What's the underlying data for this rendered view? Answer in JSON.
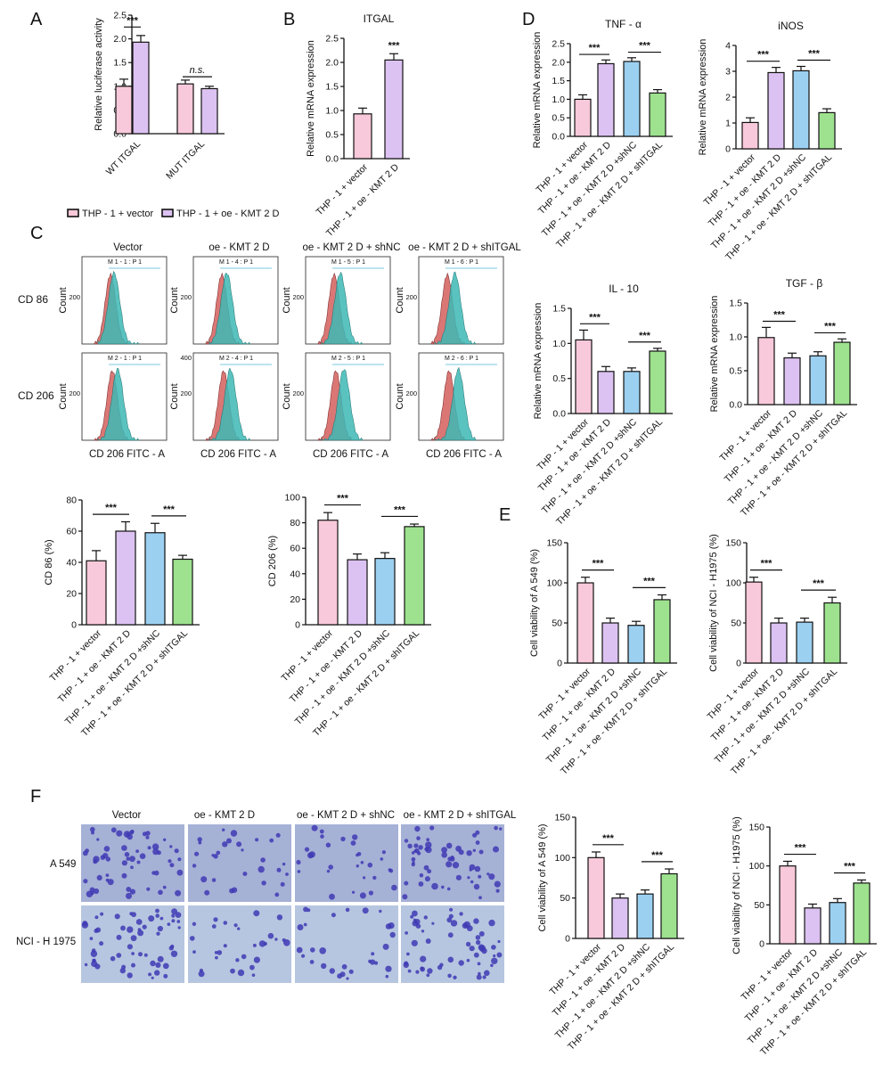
{
  "colors": {
    "pink": "#f8c9da",
    "purple": "#dcc2f2",
    "blue": "#9cd0f0",
    "green": "#9ee28f",
    "red_hist": "#d9706e",
    "cyan_hist": "#3db8b5",
    "micro_bg": "#a9b6d8",
    "micro_cell": "#3f3ab4"
  },
  "labels4": [
    "THP - 1 + vector",
    "THP - 1 + oe - KMT 2 D",
    "THP - 1 + oe - KMT 2 D +shNC",
    "THP - 1 + oe - KMT 2 D + shITGAL"
  ],
  "panels": {
    "A": "A",
    "B": "B",
    "C": "C",
    "D": "D",
    "E": "E",
    "F": "F"
  },
  "panelC_flow": {
    "columns": [
      "Vector",
      "oe - KMT 2 D",
      "oe - KMT 2 D + shNC",
      "oe - KMT 2 D + shITGAL"
    ],
    "rows": [
      "CD 86",
      "CD 206"
    ],
    "gates": [
      "M 1 - 1 : P 1",
      "M 1 - 4 : P 1",
      "M 1 - 5 : P 1",
      "M 1 - 6 : P 1",
      "M 2 - 1 : P 1",
      "M 2 - 4 : P 1",
      "M 2 - 5 : P 1",
      "M 2 - 6 : P 1"
    ],
    "ylabel": "Count",
    "xlabel": "CD 206 FITC - A",
    "top_ticks": [
      "200",
      "200",
      "200",
      "200"
    ],
    "bottom_ticks": [
      [
        "200"
      ],
      [
        "400",
        "200"
      ],
      [
        "200"
      ],
      [
        "200"
      ]
    ]
  },
  "panelF_images": {
    "columns": [
      "Vector",
      "oe - KMT 2 D",
      "oe - KMT 2 D + shNC",
      "oe - KMT 2 D + shITGAL"
    ],
    "rows": [
      "A 549",
      "NCI - H 1975"
    ]
  },
  "chart_data": [
    {
      "id": "A",
      "type": "bar",
      "ylabel": "Relative luciferase activity",
      "ylim": [
        0,
        2.5
      ],
      "yticks": [
        "0.0",
        "0.5",
        "1.0",
        "1.5",
        "2.0",
        "2.5"
      ],
      "categories": [
        "WT ITGAL",
        "MUT ITGAL"
      ],
      "series": [
        {
          "name": "THP - 1 + vector",
          "values": [
            1.0,
            1.05
          ],
          "errors": [
            0.15,
            0.08
          ]
        },
        {
          "name": "THP - 1 + oe - KMT 2 D",
          "values": [
            1.93,
            0.95
          ],
          "errors": [
            0.14,
            0.05
          ]
        }
      ],
      "significance": [
        "***",
        "n.s."
      ],
      "legend": [
        "THP - 1 + vector",
        "THP - 1 + oe - KMT 2 D"
      ]
    },
    {
      "id": "B",
      "type": "bar",
      "title": "ITGAL",
      "ylabel": "Relative mRNA expression",
      "ylim": [
        0,
        2.5
      ],
      "yticks": [
        "0.0",
        "0.5",
        "1.0",
        "1.5",
        "2.0",
        "2.5"
      ],
      "categories": [
        "THP - 1 + vector",
        "THP - 1 + oe - KMT 2 D"
      ],
      "values": [
        0.93,
        2.05
      ],
      "errors": [
        0.12,
        0.13
      ],
      "significance": [
        "***"
      ]
    },
    {
      "id": "D1",
      "type": "bar",
      "title": "TNF - α",
      "ylabel": "Relative mRNA expression",
      "ylim": [
        0,
        2.5
      ],
      "yticks": [
        "0.0",
        "0.5",
        "1.0",
        "1.5",
        "2.0",
        "2.5"
      ],
      "categories": [
        "THP - 1 + vector",
        "THP - 1 + oe - KMT 2 D",
        "THP - 1 + oe - KMT 2 D +shNC",
        "THP - 1 + oe - KMT 2 D + shITGAL"
      ],
      "values": [
        1.0,
        1.96,
        2.02,
        1.17
      ],
      "errors": [
        0.12,
        0.1,
        0.1,
        0.09
      ],
      "significance": [
        "***",
        "***"
      ]
    },
    {
      "id": "D2",
      "type": "bar",
      "title": "iNOS",
      "ylabel": "Relative mRNA expression",
      "ylim": [
        0,
        4
      ],
      "yticks": [
        "0",
        "1",
        "2",
        "3",
        "4"
      ],
      "categories": [
        "THP - 1 + vector",
        "THP - 1 + oe - KMT 2 D",
        "THP - 1 + oe - KMT 2 D +shNC",
        "THP - 1 + oe - KMT 2 D + shITGAL"
      ],
      "values": [
        1.02,
        2.95,
        3.02,
        1.4
      ],
      "errors": [
        0.18,
        0.2,
        0.17,
        0.15
      ],
      "significance": [
        "***",
        "***"
      ]
    },
    {
      "id": "D3",
      "type": "bar",
      "title": "IL - 10",
      "ylabel": "Relative mRNA expression",
      "ylim": [
        0,
        1.5
      ],
      "yticks": [
        "0.0",
        "0.5",
        "1.0",
        "1.5"
      ],
      "categories": [
        "THP - 1 + vector",
        "THP - 1 + oe - KMT 2 D",
        "THP - 1 + oe - KMT 2 D +shNC",
        "THP - 1 + oe - KMT 2 D + shITGAL"
      ],
      "values": [
        1.05,
        0.6,
        0.6,
        0.89
      ],
      "errors": [
        0.14,
        0.07,
        0.05,
        0.04
      ],
      "significance": [
        "***",
        "***"
      ]
    },
    {
      "id": "D4",
      "type": "bar",
      "title": "TGF - β",
      "ylabel": "Relative mRNA expression",
      "ylim": [
        0,
        1.5
      ],
      "yticks": [
        "0.0",
        "0.5",
        "1.0",
        "1.5"
      ],
      "categories": [
        "THP - 1 + vector",
        "THP - 1 + oe - KMT 2 D",
        "THP - 1 + oe - KMT 2 D +shNC",
        "THP - 1 + oe - KMT 2 D + shITGAL"
      ],
      "values": [
        0.99,
        0.69,
        0.72,
        0.92
      ],
      "errors": [
        0.15,
        0.07,
        0.06,
        0.05
      ],
      "significance": [
        "***",
        "***"
      ]
    },
    {
      "id": "C1",
      "type": "bar",
      "ylabel": "CD 86 (%)",
      "ylim": [
        0,
        80
      ],
      "yticks": [
        "0",
        "20",
        "40",
        "60",
        "80"
      ],
      "categories": [
        "THP - 1 + vector",
        "THP - 1 + oe - KMT 2 D",
        "THP - 1 + oe - KMT 2 D +shNC",
        "THP - 1 + oe - KMT 2 D + shITGAL"
      ],
      "values": [
        41,
        60,
        59,
        42
      ],
      "errors": [
        6.5,
        6,
        6,
        2.5
      ],
      "significance": [
        "***",
        "***"
      ]
    },
    {
      "id": "C2",
      "type": "bar",
      "ylabel": "CD 206 (%)",
      "ylim": [
        0,
        100
      ],
      "yticks": [
        "0",
        "20",
        "40",
        "60",
        "80",
        "100"
      ],
      "categories": [
        "THP - 1 + vector",
        "THP - 1 + oe - KMT 2 D",
        "THP - 1 + oe - KMT 2 D +shNC",
        "THP - 1 + oe - KMT 2 D + shITGAL"
      ],
      "values": [
        82,
        51,
        52,
        77
      ],
      "errors": [
        6,
        4.5,
        4.5,
        2
      ],
      "significance": [
        "***",
        "***"
      ]
    },
    {
      "id": "E1",
      "type": "bar",
      "ylabel": "Cell viability of A 549 (%)",
      "ylim": [
        0,
        150
      ],
      "yticks": [
        "0",
        "50",
        "100",
        "150"
      ],
      "categories": [
        "THP - 1 + vector",
        "THP - 1 + oe - KMT 2 D",
        "THP - 1 + oe - KMT 2 D +shNC",
        "THP - 1 + oe - KMT 2 D + shITGAL"
      ],
      "values": [
        100,
        50,
        47,
        79
      ],
      "errors": [
        7,
        6,
        5,
        6
      ],
      "significance": [
        "***",
        "***"
      ]
    },
    {
      "id": "E2",
      "type": "bar",
      "ylabel": "Cell viability of NCI - H1975 (%)",
      "ylim": [
        0,
        150
      ],
      "yticks": [
        "0",
        "50",
        "100",
        "150"
      ],
      "categories": [
        "THP - 1 + vector",
        "THP - 1 + oe - KMT 2 D",
        "THP - 1 + oe - KMT 2 D +shNC",
        "THP - 1 + oe - KMT 2 D + shITGAL"
      ],
      "values": [
        101,
        50,
        51,
        75
      ],
      "errors": [
        6,
        6,
        5,
        7
      ],
      "significance": [
        "***",
        "***"
      ]
    },
    {
      "id": "F1",
      "type": "bar",
      "ylabel": "Cell viability of A 549 (%)",
      "ylim": [
        0,
        150
      ],
      "yticks": [
        "0",
        "50",
        "100",
        "150"
      ],
      "categories": [
        "THP - 1 + vector",
        "THP - 1 + oe - KMT 2 D",
        "THP - 1 + oe - KMT 2 D +shNC",
        "THP - 1 + oe - KMT 2 D + shITGAL"
      ],
      "values": [
        100,
        50,
        55,
        80
      ],
      "errors": [
        7,
        5,
        5,
        6
      ],
      "significance": [
        "***",
        "***"
      ]
    },
    {
      "id": "F2",
      "type": "bar",
      "ylabel": "Cell viability of NCI - H1975 (%)",
      "ylim": [
        0,
        150
      ],
      "yticks": [
        "0",
        "50",
        "100",
        "150"
      ],
      "categories": [
        "THP - 1 + vector",
        "THP - 1 + oe - KMT 2 D",
        "THP - 1 + oe - KMT 2 D +shNC",
        "THP - 1 + oe - KMT 2 D + shITGAL"
      ],
      "values": [
        100,
        46,
        53,
        78
      ],
      "errors": [
        6,
        5,
        5,
        4
      ],
      "significance": [
        "***",
        "***"
      ]
    }
  ]
}
